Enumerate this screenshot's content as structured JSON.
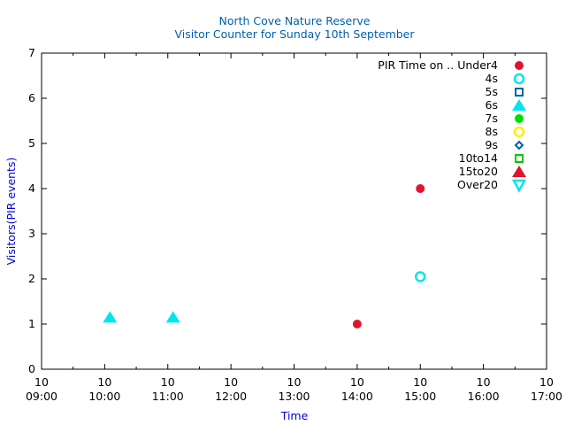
{
  "chart_data": {
    "type": "scatter",
    "title": "North Cove Nature Reserve",
    "subtitle": "Visitor Counter for Sunday 10th September",
    "xlabel": "Time",
    "ylabel": "Visitors(PIR events)",
    "legend_title": "PIR Time on .. ",
    "legend_position": "top-right",
    "grid": false,
    "x_ticks": [
      {
        "x": 9,
        "day": "10",
        "time": "09:00"
      },
      {
        "x": 10,
        "day": "10",
        "time": "10:00"
      },
      {
        "x": 11,
        "day": "10",
        "time": "11:00"
      },
      {
        "x": 12,
        "day": "10",
        "time": "12:00"
      },
      {
        "x": 13,
        "day": "10",
        "time": "13:00"
      },
      {
        "x": 14,
        "day": "10",
        "time": "14:00"
      },
      {
        "x": 15,
        "day": "10",
        "time": "15:00"
      },
      {
        "x": 16,
        "day": "10",
        "time": "16:00"
      },
      {
        "x": 17,
        "day": "10",
        "time": "17:00"
      }
    ],
    "y_ticks": [
      0,
      1,
      2,
      3,
      4,
      5,
      6,
      7
    ],
    "xlim": [
      "10 09:00",
      "10 17:00"
    ],
    "ylim": [
      0,
      7
    ],
    "series": [
      {
        "name": "Under4",
        "marker": "circle-filled",
        "color": "#e0142b",
        "points": [
          {
            "x": "10 14:00",
            "y": 1
          },
          {
            "x": "10 15:00",
            "y": 4
          }
        ]
      },
      {
        "name": "4s",
        "marker": "circle-open",
        "color": "#00e5ee",
        "points": [
          {
            "x": "10 15:00",
            "y": 2.05
          }
        ]
      },
      {
        "name": "5s",
        "marker": "square-open",
        "color": "#0060ad",
        "points": []
      },
      {
        "name": "6s",
        "marker": "triangle-filled",
        "color": "#00e5ee",
        "points": [
          {
            "x": "10 10:05",
            "y": 1.15
          },
          {
            "x": "10 11:05",
            "y": 1.15
          }
        ]
      },
      {
        "name": "7s",
        "marker": "circle-filled",
        "color": "#00dd00",
        "points": []
      },
      {
        "name": "8s",
        "marker": "circle-open",
        "color": "#ffee00",
        "points": []
      },
      {
        "name": "9s",
        "marker": "diamond-open",
        "color": "#0060ad",
        "points": []
      },
      {
        "name": "10to14",
        "marker": "square-open",
        "color": "#00cc00",
        "points": []
      },
      {
        "name": "15to20",
        "marker": "triangle-filled",
        "color": "#e0142b",
        "points": []
      },
      {
        "name": "Over20",
        "marker": "triangle-down-open",
        "color": "#00e5ee",
        "points": []
      }
    ],
    "colors": {
      "title": "#0060ad",
      "axis_label": "#0000dd",
      "axis": "#000000"
    }
  }
}
